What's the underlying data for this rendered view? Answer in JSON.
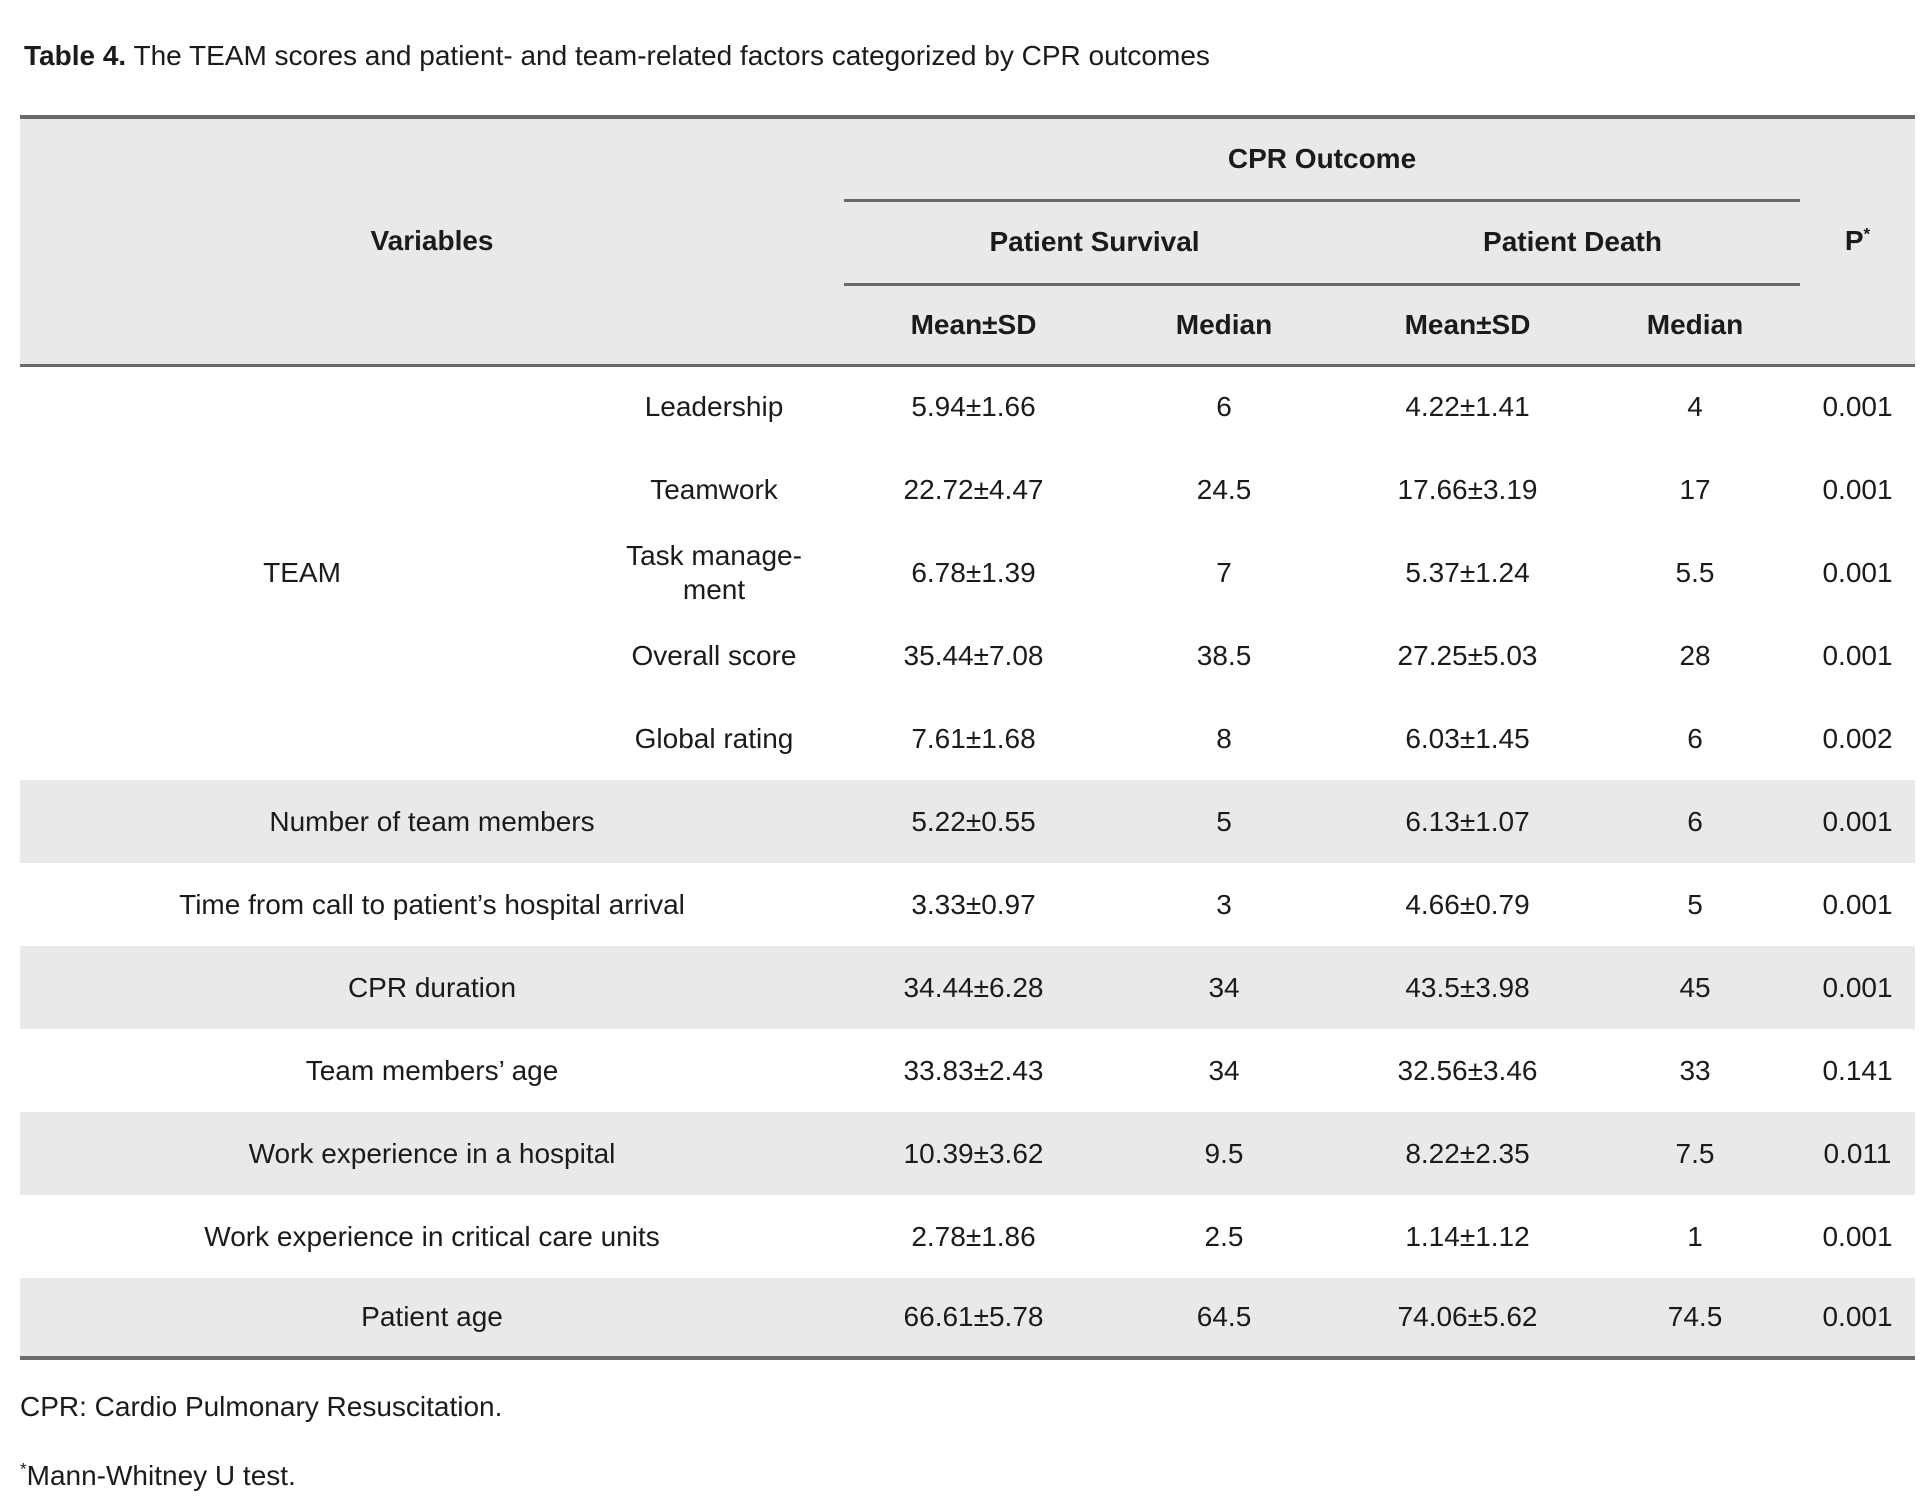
{
  "title": {
    "label": "Table 4.",
    "text": " The TEAM scores and patient- and team-related factors categorized by CPR outcomes"
  },
  "table": {
    "headers": {
      "variables": "Variables",
      "cpr_outcome": "CPR Outcome",
      "patient_survival": "Patient Survival",
      "patient_death": "Patient Death",
      "p": "P",
      "p_sup": "*",
      "survival_mean": "Mean±SD",
      "survival_median": "Median",
      "death_mean": "Mean±SD",
      "death_median": "Median"
    },
    "rows": [
      {
        "group": "TEAM",
        "group_rowspan": 5,
        "in_group": true,
        "shaded": false,
        "label": "Leadership",
        "survival_mean": "5.94±1.66",
        "survival_median": "6",
        "death_mean": "4.22±1.41",
        "death_median": "4",
        "p": "0.001"
      },
      {
        "in_group": true,
        "shaded": false,
        "label": "Teamwork",
        "survival_mean": "22.72±4.47",
        "survival_median": "24.5",
        "death_mean": "17.66±3.19",
        "death_median": "17",
        "p": "0.001"
      },
      {
        "in_group": true,
        "shaded": false,
        "label": "Task manage-\nment",
        "survival_mean": "6.78±1.39",
        "survival_median": "7",
        "death_mean": "5.37±1.24",
        "death_median": "5.5",
        "p": "0.001"
      },
      {
        "in_group": true,
        "shaded": false,
        "label": "Overall score",
        "survival_mean": "35.44±7.08",
        "survival_median": "38.5",
        "death_mean": "27.25±5.03",
        "death_median": "28",
        "p": "0.001"
      },
      {
        "in_group": true,
        "shaded": false,
        "label": "Global rating",
        "survival_mean": "7.61±1.68",
        "survival_median": "8",
        "death_mean": "6.03±1.45",
        "death_median": "6",
        "p": "0.002"
      },
      {
        "shaded": true,
        "label": "Number of team members",
        "survival_mean": "5.22±0.55",
        "survival_median": "5",
        "death_mean": "6.13±1.07",
        "death_median": "6",
        "p": "0.001"
      },
      {
        "shaded": false,
        "label": "Time from call to patient’s hospital arrival",
        "survival_mean": "3.33±0.97",
        "survival_median": "3",
        "death_mean": "4.66±0.79",
        "death_median": "5",
        "p": "0.001"
      },
      {
        "shaded": true,
        "label": "CPR duration",
        "survival_mean": "34.44±6.28",
        "survival_median": "34",
        "death_mean": "43.5±3.98",
        "death_median": "45",
        "p": "0.001"
      },
      {
        "shaded": false,
        "label": "Team members’ age",
        "survival_mean": "33.83±2.43",
        "survival_median": "34",
        "death_mean": "32.56±3.46",
        "death_median": "33",
        "p": "0.141"
      },
      {
        "shaded": true,
        "label": "Work experience in a hospital",
        "survival_mean": "10.39±3.62",
        "survival_median": "9.5",
        "death_mean": "8.22±2.35",
        "death_median": "7.5",
        "p": "0.011"
      },
      {
        "shaded": false,
        "label": "Work experience in critical care units",
        "survival_mean": "2.78±1.86",
        "survival_median": "2.5",
        "death_mean": "1.14±1.12",
        "death_median": "1",
        "p": "0.001"
      },
      {
        "shaded": true,
        "label": "Patient age",
        "survival_mean": "66.61±5.78",
        "survival_median": "64.5",
        "death_mean": "74.06±5.62",
        "death_median": "74.5",
        "p": "0.001"
      }
    ]
  },
  "footnotes": {
    "cpr": "CPR: Cardio Pulmonary Resuscitation.",
    "test_sup": "*",
    "test": "Mann-Whitney U test."
  },
  "colors": {
    "shading": "#e9e9e9",
    "rule": "#6a6a6c",
    "text": "#1b1b1b",
    "background": "#ffffff"
  }
}
